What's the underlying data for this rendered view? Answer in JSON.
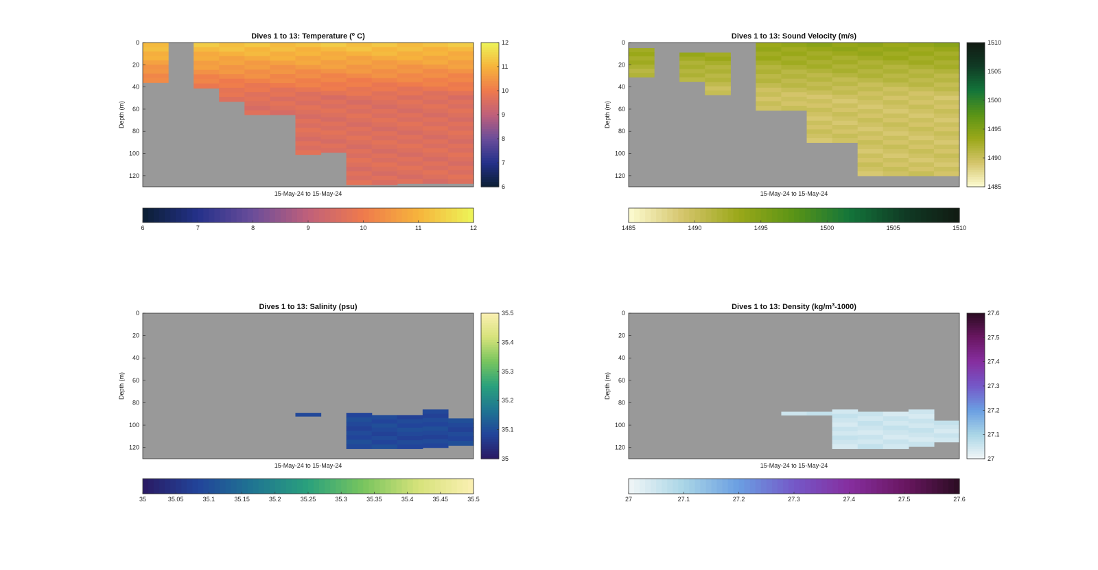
{
  "figure": {
    "background": "#ffffff",
    "missing_color": "#999999"
  },
  "chart_data": [
    {
      "type": "heatmap",
      "title_parts": [
        "Dives 1 to 13: Temperature (",
        "o",
        " C)"
      ],
      "title_sup_index": 1,
      "ylabel": "Depth (m)",
      "xlabel": "15-May-24 to 15-May-24",
      "ylim": [
        0,
        130
      ],
      "yticks": [
        0,
        20,
        40,
        60,
        80,
        100,
        120
      ],
      "y_reversed": true,
      "clim": [
        6,
        12
      ],
      "vertical_colorbar_ticks": [
        "6",
        "7",
        "8",
        "9",
        "10",
        "11",
        "12"
      ],
      "horizontal_colorbar_ticks": [
        "6",
        "7",
        "8",
        "9",
        "10",
        "11",
        "12"
      ],
      "colormap": [
        "#0b1e33",
        "#24318a",
        "#6b4d9a",
        "#c0607a",
        "#ef7a4c",
        "#f6b43c",
        "#ecf558"
      ],
      "columns": 13,
      "column_depth_ranges": [
        [
          0,
          36
        ],
        [
          0,
          0
        ],
        [
          0,
          41
        ],
        [
          0,
          53
        ],
        [
          0,
          65
        ],
        [
          0,
          65
        ],
        [
          0,
          101
        ],
        [
          0,
          99
        ],
        [
          0,
          128
        ],
        [
          0,
          128
        ],
        [
          0,
          127
        ],
        [
          0,
          127
        ],
        [
          0,
          127
        ]
      ],
      "surface_value": 11.3,
      "deep_value": 9.6,
      "gradient_depth": 50
    },
    {
      "type": "heatmap",
      "title_parts": [
        "Dives 1 to 13: Sound Velocity (m/s)"
      ],
      "title_sup_index": -1,
      "ylabel": "Depth (m)",
      "xlabel": "15-May-24 to 15-May-24",
      "ylim": [
        0,
        130
      ],
      "yticks": [
        0,
        20,
        40,
        60,
        80,
        100,
        120
      ],
      "y_reversed": true,
      "clim": [
        1485,
        1510
      ],
      "vertical_colorbar_ticks": [
        "1485",
        "1490",
        "1495",
        "1500",
        "1505",
        "1510"
      ],
      "horizontal_colorbar_ticks": [
        "1485",
        "1490",
        "1495",
        "1500",
        "1505",
        "1510"
      ],
      "colormap": [
        "#fdfcd2",
        "#d4c46a",
        "#9aa819",
        "#5a9416",
        "#13753a",
        "#103b25",
        "#111a12"
      ],
      "columns": 13,
      "column_depth_ranges": [
        [
          5,
          31
        ],
        [
          0,
          0
        ],
        [
          9,
          35
        ],
        [
          9,
          47
        ],
        [
          0,
          0
        ],
        [
          0,
          61
        ],
        [
          0,
          61
        ],
        [
          0,
          90
        ],
        [
          0,
          90
        ],
        [
          0,
          120
        ],
        [
          0,
          120
        ],
        [
          0,
          120
        ],
        [
          0,
          120
        ]
      ],
      "surface_value": 1494,
      "deep_value": 1489.5,
      "gradient_depth": 50
    },
    {
      "type": "heatmap",
      "title_parts": [
        "Dives 1 to 13: Salinity (psu)"
      ],
      "title_sup_index": -1,
      "ylabel": "Depth (m)",
      "xlabel": "15-May-24 to 15-May-24",
      "ylim": [
        0,
        130
      ],
      "yticks": [
        0,
        20,
        40,
        60,
        80,
        100,
        120
      ],
      "y_reversed": true,
      "clim": [
        35,
        35.5
      ],
      "vertical_colorbar_ticks": [
        "35",
        "35.1",
        "35.2",
        "35.3",
        "35.4",
        "35.5"
      ],
      "horizontal_colorbar_ticks": [
        "35",
        "35.05",
        "35.1",
        "35.15",
        "35.2",
        "35.25",
        "35.3",
        "35.35",
        "35.4",
        "35.45",
        "35.5"
      ],
      "colormap": [
        "#2a1a63",
        "#22449a",
        "#1f7592",
        "#2aa17c",
        "#78c55e",
        "#d6e27a",
        "#fbf0b3"
      ],
      "columns": 13,
      "column_depth_ranges": [
        [
          0,
          0
        ],
        [
          0,
          0
        ],
        [
          0,
          0
        ],
        [
          0,
          0
        ],
        [
          0,
          0
        ],
        [
          0,
          0
        ],
        [
          89,
          92
        ],
        [
          0,
          0
        ],
        [
          89,
          121
        ],
        [
          91,
          121
        ],
        [
          91,
          121
        ],
        [
          86,
          120
        ],
        [
          94,
          118
        ]
      ],
      "surface_value": 35.03,
      "deep_value": 35.09,
      "gradient_depth": 30
    },
    {
      "type": "heatmap",
      "title_parts": [
        "Dives 1 to 13: Density (kg/m",
        "3",
        "-1000)"
      ],
      "title_sup_index": 1,
      "ylabel": "Depth (m)",
      "xlabel": "15-May-24 to 15-May-24",
      "ylim": [
        0,
        130
      ],
      "yticks": [
        0,
        20,
        40,
        60,
        80,
        100,
        120
      ],
      "y_reversed": true,
      "clim": [
        27,
        27.6
      ],
      "vertical_colorbar_ticks": [
        "27",
        "27.1",
        "27.2",
        "27.3",
        "27.4",
        "27.5",
        "27.6"
      ],
      "horizontal_colorbar_ticks": [
        "27",
        "27.1",
        "27.2",
        "27.3",
        "27.4",
        "27.5",
        "27.6"
      ],
      "colormap": [
        "#f1f6f7",
        "#a9d5e6",
        "#6a9ee2",
        "#7458c8",
        "#862e9f",
        "#6a1762",
        "#2b0c22"
      ],
      "columns": 13,
      "column_depth_ranges": [
        [
          0,
          0
        ],
        [
          0,
          0
        ],
        [
          0,
          0
        ],
        [
          0,
          0
        ],
        [
          0,
          0
        ],
        [
          0,
          0
        ],
        [
          88,
          91
        ],
        [
          88,
          91
        ],
        [
          86,
          121
        ],
        [
          88,
          121
        ],
        [
          88,
          121
        ],
        [
          86,
          119
        ],
        [
          96,
          115
        ]
      ],
      "surface_value": 27.02,
      "deep_value": 27.05,
      "gradient_depth": 30
    }
  ]
}
